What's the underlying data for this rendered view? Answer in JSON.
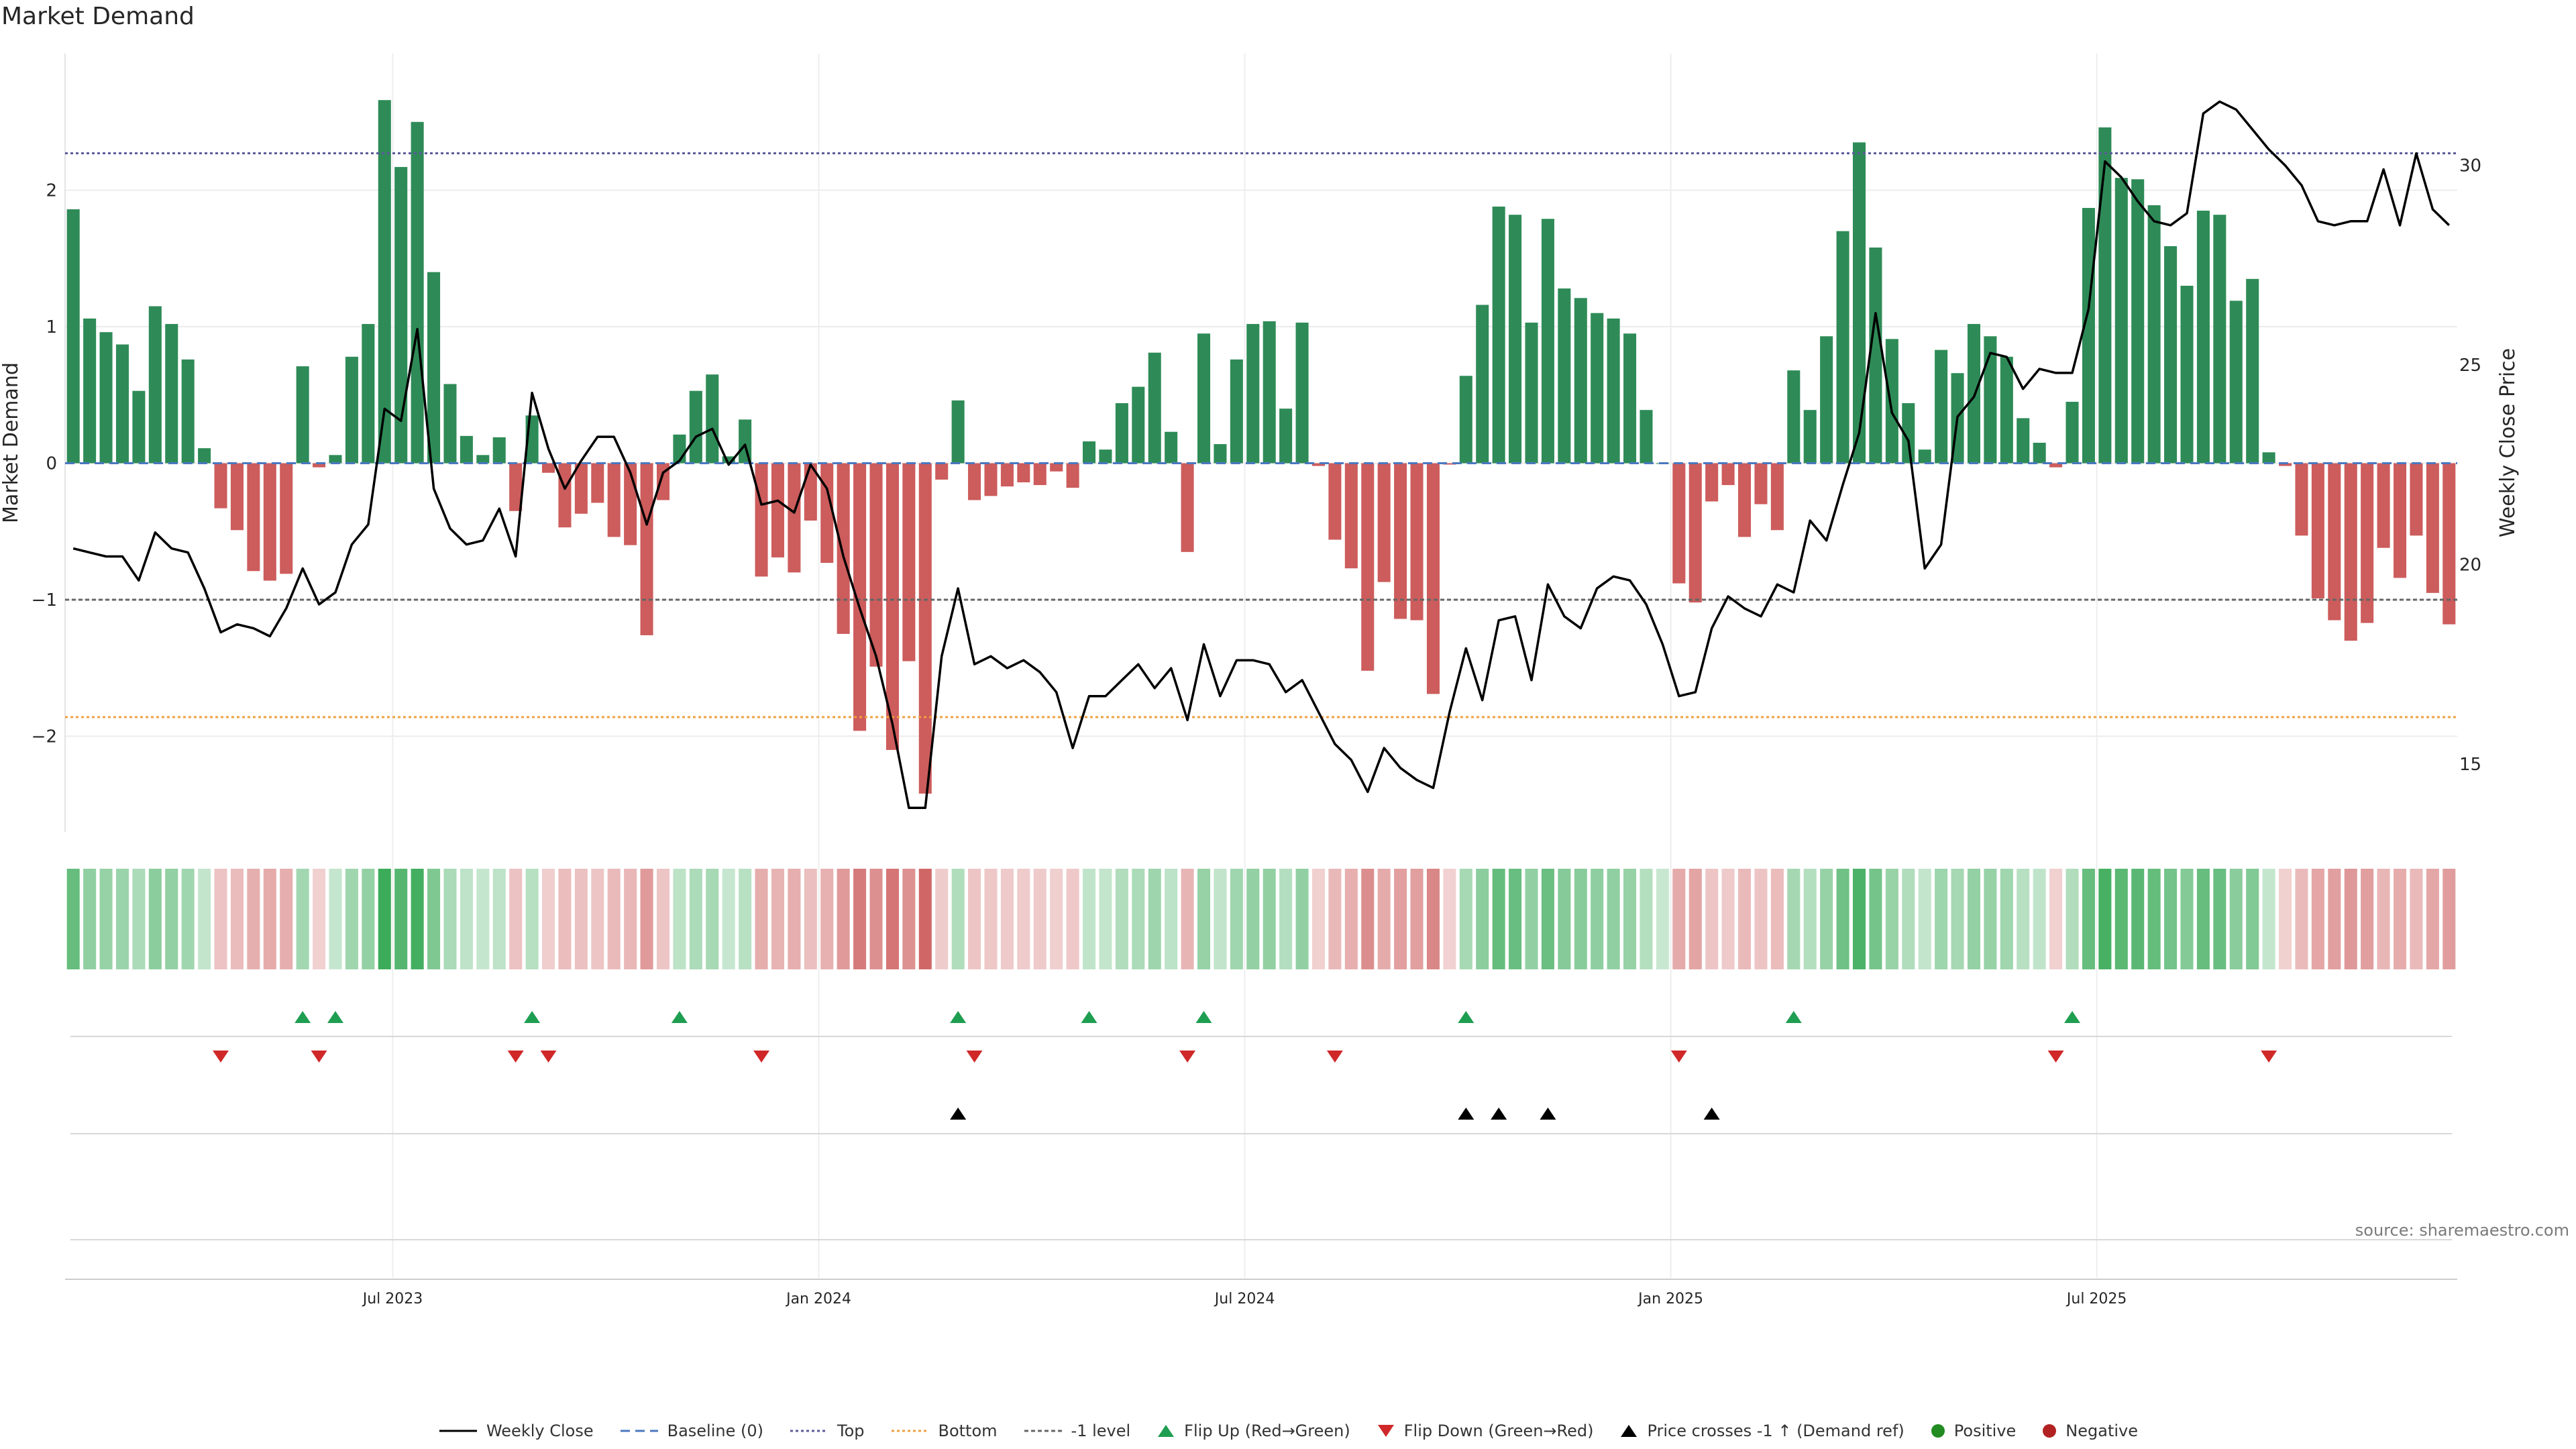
{
  "chart_data": {
    "type": "bar",
    "title": "Market Demand",
    "ylabel": "Market Demand",
    "y2label": "Weekly Close Price",
    "ylim": [
      -2.7,
      3.0
    ],
    "y2lim": [
      13.3,
      32.8
    ],
    "yticks": [
      -2,
      -1,
      0,
      1,
      2
    ],
    "y2ticks": [
      15,
      20,
      25,
      30
    ],
    "xticks": [
      {
        "week": 20,
        "label": "Jul 2023"
      },
      {
        "week": 46,
        "label": "Jan 2024"
      },
      {
        "week": 72,
        "label": "Jul 2024"
      },
      {
        "week": 98,
        "label": "Jan 2025"
      },
      {
        "week": 124,
        "label": "Jul 2025"
      }
    ],
    "reference_lines": {
      "baseline": 0,
      "top": 2.27,
      "bottom": -1.86,
      "minus_one": -1
    },
    "demand": [
      1.86,
      1.06,
      0.96,
      0.87,
      0.53,
      1.15,
      1.02,
      0.76,
      0.11,
      -0.33,
      -0.49,
      -0.79,
      -0.86,
      -0.81,
      0.71,
      -0.03,
      0.06,
      0.78,
      1.02,
      2.66,
      2.17,
      2.5,
      1.4,
      0.58,
      0.2,
      0.06,
      0.19,
      -0.35,
      0.35,
      -0.07,
      -0.47,
      -0.37,
      -0.29,
      -0.54,
      -0.6,
      -1.26,
      -0.27,
      0.21,
      0.53,
      0.65,
      0.05,
      0.32,
      -0.83,
      -0.69,
      -0.8,
      -0.42,
      -0.73,
      -1.25,
      -1.96,
      -1.49,
      -2.1,
      -1.45,
      -2.42,
      -0.12,
      0.46,
      -0.27,
      -0.24,
      -0.17,
      -0.14,
      -0.16,
      -0.06,
      -0.18,
      0.16,
      0.1,
      0.44,
      0.56,
      0.81,
      0.23,
      -0.65,
      0.95,
      0.14,
      0.76,
      1.02,
      1.04,
      0.4,
      1.03,
      -0.02,
      -0.56,
      -0.77,
      -1.52,
      -0.87,
      -1.14,
      -1.15,
      -1.69,
      -0.01,
      0.64,
      1.16,
      1.88,
      1.82,
      1.03,
      1.79,
      1.28,
      1.21,
      1.1,
      1.06,
      0.95,
      0.39,
      0.0,
      -0.88,
      -1.02,
      -0.28,
      -0.16,
      -0.54,
      -0.3,
      -0.49,
      0.68,
      0.39,
      0.93,
      1.7,
      2.35,
      1.58,
      0.91,
      0.44,
      0.1,
      0.83,
      0.66,
      1.02,
      0.93,
      0.78,
      0.33,
      0.15,
      -0.03,
      0.45,
      1.87,
      2.46,
      2.09,
      2.08,
      1.89,
      1.59,
      1.3,
      1.85,
      1.82,
      1.19,
      1.35,
      0.08,
      -0.02,
      -0.53,
      -0.99,
      -1.15,
      -1.3,
      -1.17,
      -0.62,
      -0.84,
      -0.53,
      -0.95,
      -1.18
    ],
    "weekly_close": [
      20.4,
      20.3,
      20.2,
      20.2,
      19.6,
      20.8,
      20.4,
      20.3,
      19.4,
      18.3,
      18.5,
      18.4,
      18.2,
      18.9,
      19.9,
      19.0,
      19.3,
      20.5,
      21.0,
      23.9,
      23.6,
      25.9,
      21.9,
      20.9,
      20.5,
      20.6,
      21.4,
      20.2,
      24.3,
      22.9,
      21.9,
      22.6,
      23.2,
      23.2,
      22.3,
      21.0,
      22.3,
      22.6,
      23.2,
      23.4,
      22.5,
      23.0,
      21.5,
      21.6,
      21.3,
      22.5,
      21.9,
      20.2,
      18.9,
      17.7,
      16.0,
      13.9,
      13.9,
      17.7,
      19.4,
      17.5,
      17.7,
      17.4,
      17.6,
      17.3,
      16.8,
      15.4,
      16.7,
      16.7,
      17.1,
      17.5,
      16.9,
      17.4,
      16.1,
      18.0,
      16.7,
      17.6,
      17.6,
      17.5,
      16.8,
      17.1,
      16.3,
      15.5,
      15.1,
      14.3,
      15.4,
      14.9,
      14.6,
      14.4,
      16.3,
      17.9,
      16.6,
      18.6,
      18.7,
      17.1,
      19.5,
      18.7,
      18.4,
      19.4,
      19.7,
      19.6,
      19.0,
      18.0,
      16.7,
      16.8,
      18.4,
      19.2,
      18.9,
      18.7,
      19.5,
      19.3,
      21.1,
      20.6,
      22.0,
      23.3,
      26.3,
      23.8,
      23.1,
      19.9,
      20.5,
      23.7,
      24.2,
      25.3,
      25.2,
      24.4,
      24.9,
      24.8,
      24.8,
      26.4,
      30.1,
      29.7,
      29.1,
      28.6,
      28.5,
      28.8,
      31.3,
      31.6,
      31.4,
      30.9,
      30.4,
      30.0,
      29.5,
      28.6,
      28.5,
      28.6,
      28.6,
      29.9,
      28.5,
      30.3,
      28.9,
      28.5
    ]
  },
  "flip_up_weeks": [
    14,
    16,
    28,
    37,
    54,
    62,
    69,
    85,
    105,
    122
  ],
  "flip_down_weeks": [
    9,
    15,
    27,
    29,
    42,
    55,
    68,
    77,
    98,
    121,
    134
  ],
  "price_cross_weeks": [
    54,
    85,
    87,
    90,
    100
  ],
  "legend": {
    "weekly_close": "Weekly Close",
    "baseline": "Baseline (0)",
    "top": "Top",
    "bottom": "Bottom",
    "minus_one": "-1 level",
    "flip_up": "Flip Up (Red→Green)",
    "flip_down": "Flip Down (Green→Red)",
    "price_cross": "Price crosses -1 ↑ (Demand ref)",
    "positive": "Positive",
    "negative": "Negative"
  },
  "source": "source: sharemaestro.com",
  "colors": {
    "positive": "#2e8b57",
    "negative": "#cd5c5c",
    "price": "#000000",
    "top": "#5b5b9b",
    "bottom": "#f0a040",
    "minus_one": "#666666",
    "flip_up": "#1e9e50",
    "flip_down": "#d02828",
    "positive_dot": "#228b22",
    "negative_dot": "#b22222"
  }
}
